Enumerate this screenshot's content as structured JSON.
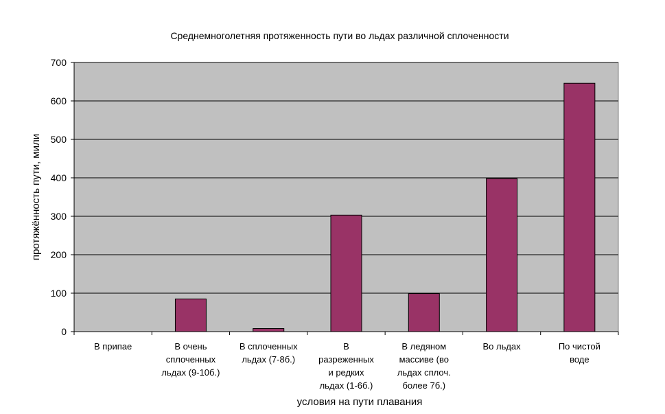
{
  "chart_data": {
    "type": "bar",
    "title": "Среднемноголетняя протяженность пути во льдах различной сплоченности",
    "xlabel": "условия на пути плавания",
    "ylabel": "протяжённость пути, мили",
    "ylim": [
      0,
      700
    ],
    "yticks": [
      0,
      100,
      200,
      300,
      400,
      500,
      600,
      700
    ],
    "grid": true,
    "legend": "none",
    "categories": [
      [
        "В припае"
      ],
      [
        "В очень",
        "сплоченных",
        "льдах (9-10б.)"
      ],
      [
        "В сплоченных",
        "льдах (7-8б.)"
      ],
      [
        "В",
        "разреженных",
        "и редких",
        "льдах (1-6б.)"
      ],
      [
        "В ледяном",
        "массиве (во",
        "льдах сплоч.",
        "более 7б.)"
      ],
      [
        "Во льдах"
      ],
      [
        "По чистой",
        "воде"
      ]
    ],
    "values": [
      0,
      85,
      8,
      303,
      99,
      398,
      646
    ],
    "colors": {
      "bar": "#993366",
      "plot_background": "#c0c0c0",
      "gridline": "#000000"
    }
  }
}
